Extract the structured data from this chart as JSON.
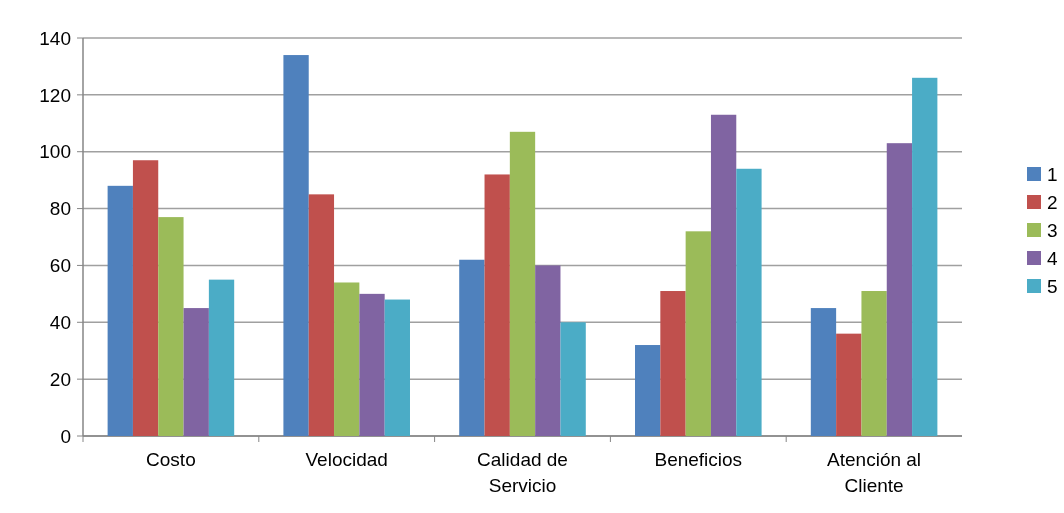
{
  "chart_data": {
    "type": "bar",
    "categories": [
      "Costo",
      "Velocidad",
      "Calidad de Servicio",
      "Beneficios",
      "Atención al Cliente"
    ],
    "series": [
      {
        "name": "1",
        "color": "#4f81bd",
        "values": [
          88,
          134,
          62,
          32,
          45
        ]
      },
      {
        "name": "2",
        "color": "#c0504d",
        "values": [
          97,
          85,
          92,
          51,
          36
        ]
      },
      {
        "name": "3",
        "color": "#9bbb59",
        "values": [
          77,
          54,
          107,
          72,
          51
        ]
      },
      {
        "name": "4",
        "color": "#8064a2",
        "values": [
          45,
          50,
          60,
          113,
          103
        ]
      },
      {
        "name": "5",
        "color": "#4bacc6",
        "values": [
          55,
          48,
          40,
          94,
          126
        ]
      }
    ],
    "ylim": [
      0,
      140
    ],
    "yticks": [
      0,
      20,
      40,
      60,
      80,
      100,
      120,
      140
    ],
    "grid": "y",
    "legend": "right"
  }
}
